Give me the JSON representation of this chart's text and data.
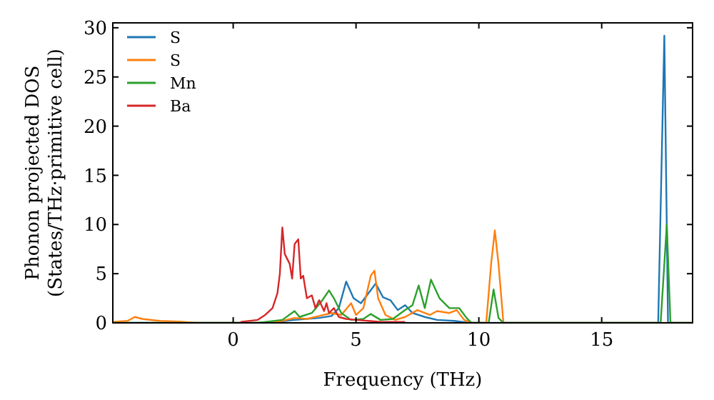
{
  "chart_data": {
    "type": "line",
    "xlabel": "Frequency (THz)",
    "ylabel": "Phonon projected DOS\n(States/THz·primitive cell)",
    "xlim": [
      -4.9,
      18.7
    ],
    "ylim": [
      0,
      30.5
    ],
    "xticks": [
      0,
      5,
      10,
      15
    ],
    "yticks": [
      0,
      5,
      10,
      15,
      20,
      25,
      30
    ],
    "legend": "top left",
    "grid": false,
    "marker": "none",
    "line_style": "solid",
    "series": [
      {
        "name": "S",
        "color": "#1f77b4",
        "x": [
          -4.9,
          1.5,
          2.5,
          3.5,
          4.0,
          4.3,
          4.6,
          4.9,
          5.2,
          5.5,
          5.8,
          6.1,
          6.4,
          6.7,
          7.0,
          7.3,
          7.8,
          8.3,
          9.0,
          9.6,
          17.3,
          17.55,
          17.7,
          18.7
        ],
        "values": [
          0,
          0,
          0.3,
          0.5,
          0.7,
          1.5,
          4.2,
          2.5,
          2.0,
          3.0,
          4.0,
          2.6,
          2.3,
          1.3,
          1.8,
          1.0,
          0.6,
          0.3,
          0.2,
          0,
          0,
          29.2,
          0,
          0
        ]
      },
      {
        "name": "S",
        "color": "#ff7f0e",
        "x": [
          -4.9,
          -4.3,
          -4.0,
          -3.7,
          -3,
          -2,
          -1.5,
          1.5,
          2.0,
          2.5,
          3.0,
          3.5,
          4.0,
          4.4,
          4.8,
          5.0,
          5.3,
          5.6,
          5.75,
          5.9,
          6.2,
          6.6,
          7.0,
          7.5,
          8.0,
          8.3,
          8.8,
          9.1,
          9.4,
          9.7,
          10.3,
          10.5,
          10.65,
          10.8,
          11.0,
          18.7
        ],
        "values": [
          0.1,
          0.2,
          0.6,
          0.4,
          0.2,
          0.1,
          0,
          0,
          0.2,
          0.5,
          0.4,
          0.7,
          1.0,
          0.8,
          2.0,
          0.8,
          1.5,
          4.8,
          5.3,
          2.5,
          0.8,
          0.3,
          0.6,
          1.3,
          0.8,
          1.2,
          1.0,
          1.3,
          0.3,
          0,
          0,
          6,
          9.4,
          6,
          0,
          0
        ]
      },
      {
        "name": "Mn",
        "color": "#2ca02c",
        "x": [
          -4.9,
          1.0,
          2.0,
          2.5,
          2.7,
          3.2,
          3.6,
          3.9,
          4.1,
          4.4,
          4.8,
          5.3,
          5.6,
          6.0,
          6.5,
          7.0,
          7.3,
          7.55,
          7.8,
          8.05,
          8.4,
          8.8,
          9.2,
          9.5,
          9.7,
          10.4,
          10.6,
          10.8,
          11.0,
          17.4,
          17.65,
          17.8,
          18.7
        ],
        "values": [
          0,
          0,
          0.3,
          1.2,
          0.6,
          1.0,
          2.2,
          3.3,
          2.5,
          1.0,
          0.3,
          0.4,
          0.9,
          0.3,
          0.4,
          1.3,
          1.8,
          3.8,
          1.5,
          4.4,
          2.5,
          1.5,
          1.5,
          0.5,
          0,
          0,
          3.4,
          0.5,
          0,
          0,
          10,
          0,
          0
        ]
      },
      {
        "name": "Ba",
        "color": "#d62728",
        "x": [
          0.3,
          1.0,
          1.3,
          1.6,
          1.8,
          1.9,
          2.0,
          2.1,
          2.3,
          2.4,
          2.5,
          2.65,
          2.75,
          2.85,
          3.0,
          3.2,
          3.35,
          3.5,
          3.7,
          3.8,
          3.9,
          4.1,
          4.3,
          4.6,
          5.0,
          5.5,
          6.0,
          7.0
        ],
        "values": [
          0.1,
          0.3,
          0.8,
          1.5,
          3,
          5,
          9.7,
          7,
          6,
          4.5,
          8,
          8.5,
          4.5,
          4.8,
          2.5,
          2.8,
          1.5,
          2.3,
          1.2,
          2.0,
          1.0,
          1.5,
          0.6,
          0.4,
          0.3,
          0.2,
          0.1,
          0.1
        ]
      }
    ]
  }
}
